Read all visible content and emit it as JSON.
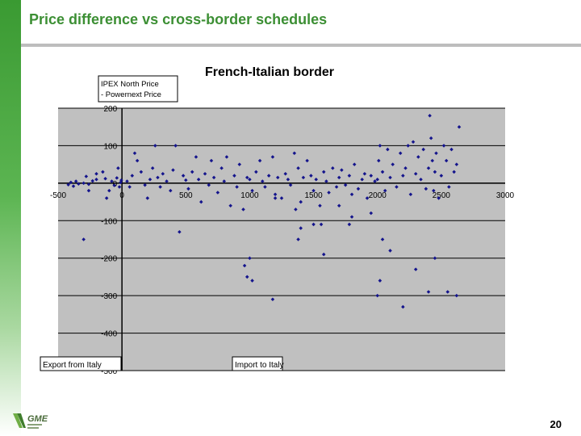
{
  "slide": {
    "title": "Price difference vs cross-border schedules",
    "page_number": "20",
    "logo_text": "GME"
  },
  "chart_data": {
    "type": "scatter",
    "title": "French-Italian border",
    "ylabel": "IPEX North Price - Powernext Price",
    "xlabel": "",
    "xlim": [
      -500,
      3000
    ],
    "ylim": [
      -500,
      200
    ],
    "xticks": [
      "-500",
      "0",
      "500",
      "1000",
      "1500",
      "2000",
      "2500",
      "3000"
    ],
    "yticks": [
      "200",
      "100",
      "0",
      "-100",
      "-200",
      "-300",
      "-400",
      "-500"
    ],
    "grid": true,
    "legend_boxes": [
      "Export from Italy",
      "Import to Italy"
    ],
    "point_color": "#14148c",
    "plot_background": "#c0c0c0",
    "series": [
      {
        "x": [
          -420,
          -400,
          -380,
          -360,
          -340,
          -300,
          -280,
          -260,
          -230,
          -200,
          -150,
          -130,
          -100,
          -80,
          -60,
          -40,
          -30,
          -20,
          -10,
          -5,
          -300,
          -260,
          -200,
          -120
        ],
        "y": [
          -4,
          2,
          -8,
          5,
          -2,
          0,
          18,
          -3,
          6,
          10,
          30,
          12,
          -20,
          5,
          -6,
          14,
          40,
          -10,
          2,
          8,
          -150,
          -20,
          25,
          -40
        ]
      },
      {
        "x": [
          40,
          60,
          80,
          100,
          120,
          150,
          180,
          200,
          220,
          240,
          260,
          280,
          300,
          320,
          350,
          380,
          400,
          420,
          450,
          480,
          500,
          520,
          550,
          580,
          600,
          620,
          650,
          680,
          700,
          720,
          750,
          780,
          800,
          820,
          850,
          880,
          900,
          920,
          950,
          980
        ],
        "y": [
          5,
          -10,
          20,
          80,
          60,
          30,
          -5,
          -40,
          10,
          40,
          100,
          15,
          -10,
          25,
          5,
          -20,
          35,
          100,
          -130,
          20,
          8,
          -15,
          30,
          70,
          10,
          -50,
          25,
          -5,
          60,
          15,
          -25,
          40,
          5,
          70,
          -60,
          20,
          -10,
          50,
          -70,
          15
        ]
      },
      {
        "x": [
          1000,
          1020,
          1050,
          1080,
          1100,
          1120,
          1150,
          1180,
          1200,
          1220,
          1250,
          1280,
          1300,
          1320,
          1350,
          1380,
          1400,
          1420,
          1450,
          1480,
          1500,
          1520,
          1550,
          1580,
          1600,
          1620,
          1650,
          1680,
          1700,
          1720,
          1750,
          1780,
          1800,
          1820,
          1850,
          1880,
          1900,
          1920,
          1950,
          1980
        ],
        "y": [
          10,
          -20,
          30,
          60,
          5,
          -10,
          20,
          70,
          -30,
          15,
          -40,
          25,
          10,
          -5,
          80,
          40,
          -50,
          15,
          60,
          20,
          -20,
          10,
          -60,
          30,
          5,
          -25,
          40,
          -10,
          15,
          35,
          -5,
          20,
          -30,
          50,
          -15,
          10,
          25,
          -40,
          20,
          5
        ]
      },
      {
        "x": [
          960,
          980,
          1000,
          1020,
          1180,
          1200,
          1360,
          1380,
          1400,
          1500,
          1560,
          1580,
          1700,
          1780,
          1800,
          1950,
          2000,
          2020,
          2040,
          2100,
          2200,
          2300,
          2400,
          2450,
          2550,
          2620
        ],
        "y": [
          -220,
          -250,
          -200,
          -260,
          -310,
          -40,
          -70,
          -150,
          -120,
          -110,
          -110,
          -190,
          -60,
          -110,
          -90,
          -80,
          -300,
          -260,
          -150,
          -180,
          -330,
          -230,
          -290,
          -200,
          -290,
          -300
        ]
      },
      {
        "x": [
          2000,
          2010,
          2020,
          2040,
          2060,
          2080,
          2100,
          2120,
          2150,
          2180,
          2200,
          2220,
          2240,
          2260,
          2280,
          2300,
          2320,
          2340,
          2360,
          2380,
          2400,
          2410,
          2420,
          2430,
          2440,
          2450,
          2460,
          2480,
          2500,
          2520,
          2540,
          2560,
          2580,
          2600,
          2620,
          2640
        ],
        "y": [
          10,
          60,
          100,
          30,
          -20,
          90,
          15,
          50,
          -10,
          80,
          20,
          40,
          100,
          -30,
          110,
          25,
          70,
          10,
          90,
          -15,
          40,
          180,
          120,
          60,
          -20,
          30,
          80,
          -40,
          20,
          100,
          60,
          -10,
          90,
          30,
          50,
          150
        ]
      }
    ]
  }
}
